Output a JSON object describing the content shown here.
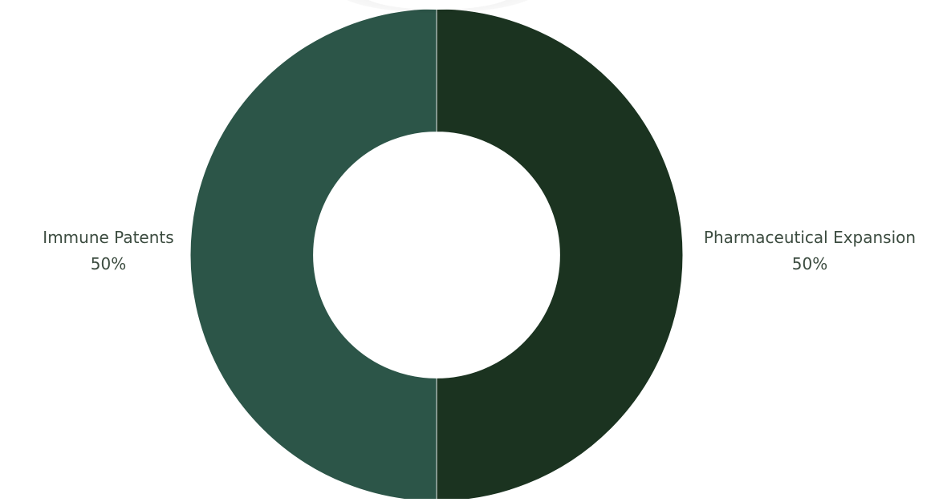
{
  "chart_data": {
    "type": "pie",
    "hole": 0.5,
    "categories": [
      "Pharmaceutical Expansion",
      "Immune Patents"
    ],
    "values": [
      50,
      50
    ],
    "percent_labels": [
      "50%",
      "50%"
    ],
    "colors": [
      "#1b3320",
      "#2c5548"
    ],
    "title": "",
    "legend": "none"
  }
}
